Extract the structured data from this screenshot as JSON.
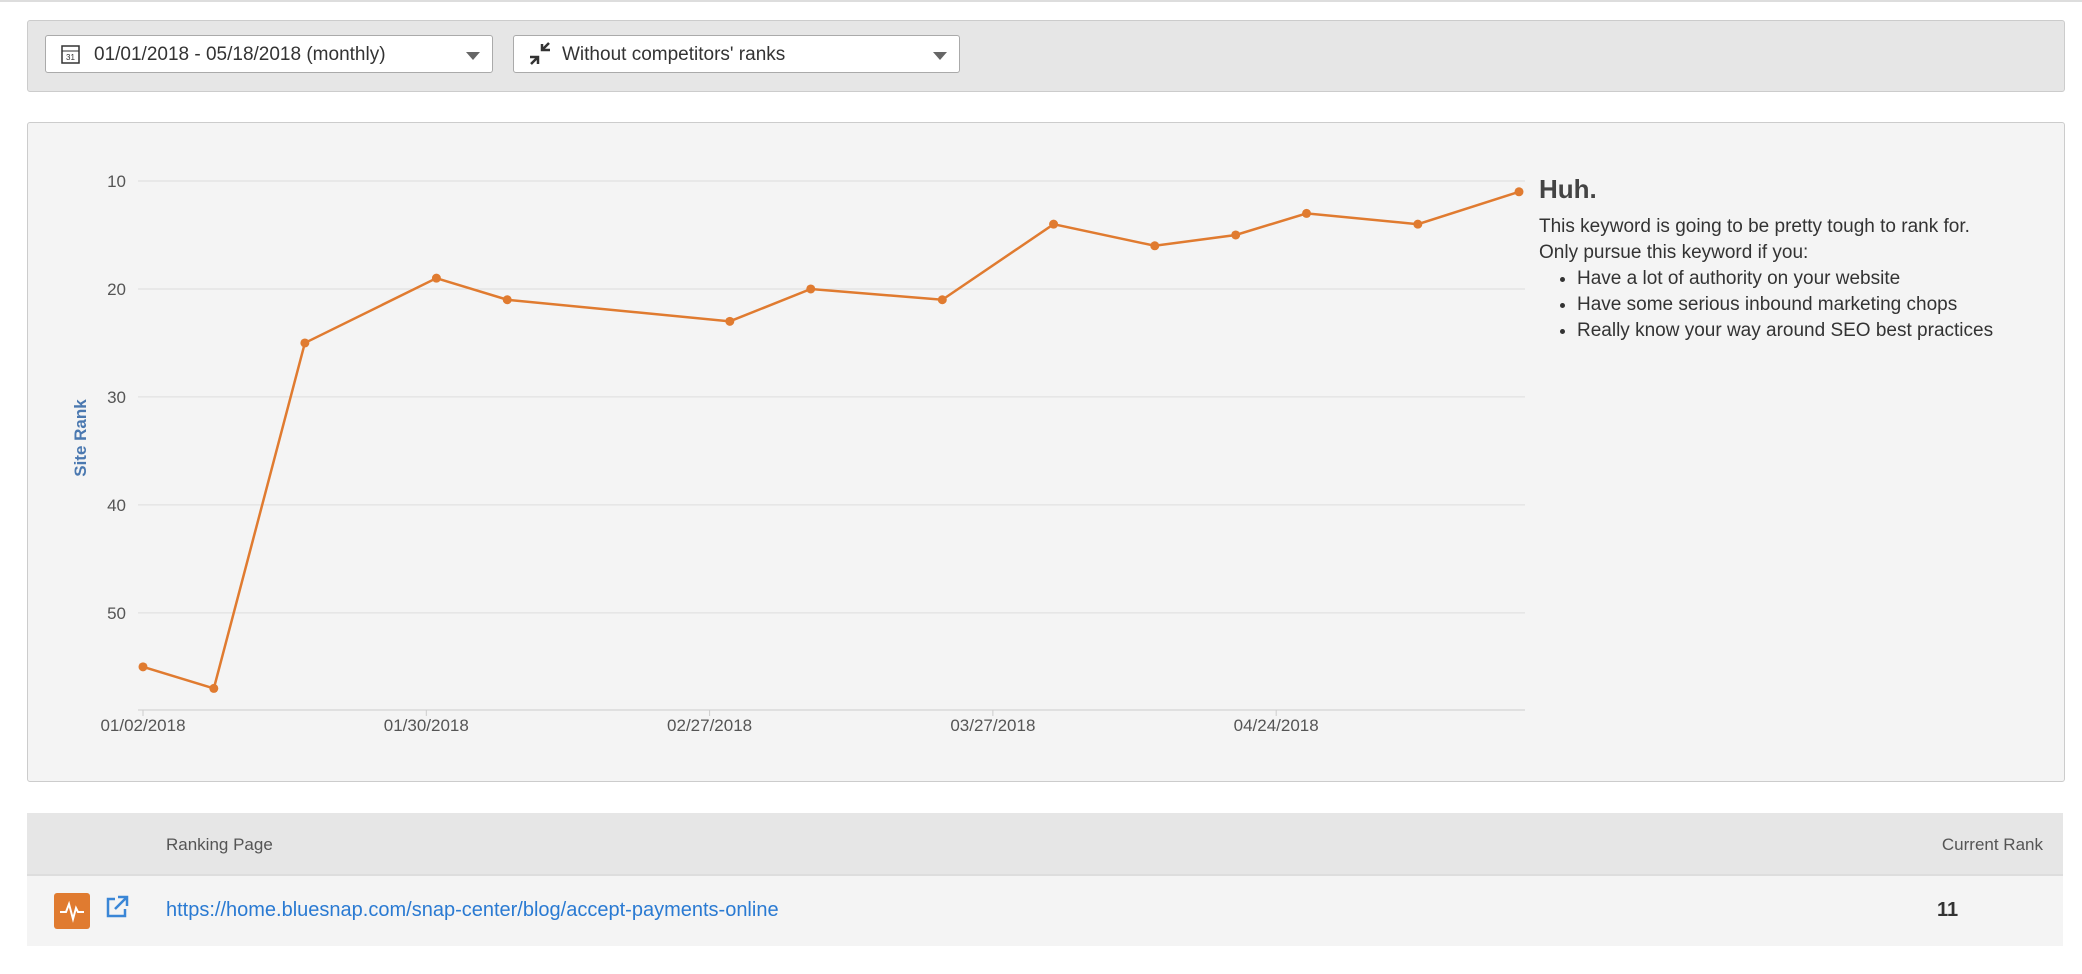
{
  "controls": {
    "date_range": "01/01/2018 - 05/18/2018 (monthly)",
    "competitors": "Without competitors' ranks"
  },
  "chart_data": {
    "type": "line",
    "y_label": "Site Rank",
    "x": [
      "01/02/2018",
      "01/09/2018",
      "01/18/2018",
      "01/31/2018",
      "02/07/2018",
      "03/01/2018",
      "03/09/2018",
      "03/22/2018",
      "04/02/2018",
      "04/12/2018",
      "04/20/2018",
      "04/27/2018",
      "05/08/2018",
      "05/18/2018"
    ],
    "series": [
      {
        "name": "Site Rank",
        "color": "#e07b30",
        "values": [
          55,
          57,
          25,
          19,
          21,
          23,
          20,
          21,
          14,
          16,
          15,
          13,
          14,
          11
        ]
      }
    ],
    "xlim": [
      "01/02/2018",
      "05/18/2018"
    ],
    "xticks": [
      "01/02/2018",
      "01/30/2018",
      "02/27/2018",
      "03/27/2018",
      "04/24/2018"
    ],
    "ylim": [
      59,
      10
    ],
    "yticks": [
      10,
      20,
      30,
      40,
      50
    ],
    "grid": true
  },
  "note": {
    "title": "Huh.",
    "lines": [
      "This keyword is going to be pretty tough to rank for.",
      "Only pursue this keyword if you:"
    ],
    "bullets": [
      "Have a lot of authority on your website",
      "Have some serious inbound marketing chops",
      "Really know your way around SEO best practices"
    ]
  },
  "table": {
    "headers": [
      "Ranking Page",
      "Current Rank"
    ],
    "rows": [
      [
        "https://home.bluesnap.com/snap-center/blog/accept-payments-online",
        "11"
      ]
    ]
  }
}
